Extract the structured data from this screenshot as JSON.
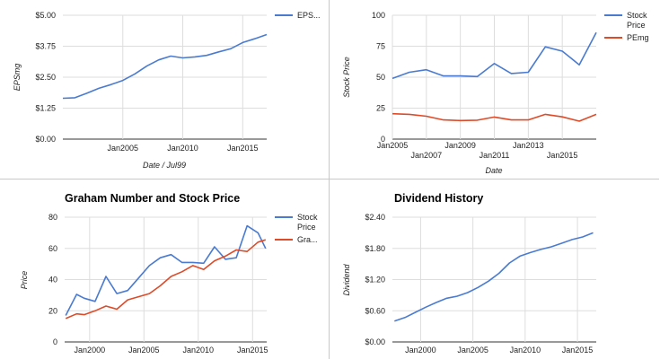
{
  "chart_data": [
    {
      "type": "line",
      "title": "",
      "xlabel": "Date / Jul99",
      "ylabel": "EPSmg",
      "x": [
        2000,
        2001,
        2002,
        2003,
        2004,
        2005,
        2006,
        2007,
        2008,
        2009,
        2010,
        2011,
        2012,
        2013,
        2014,
        2015,
        2016,
        2017
      ],
      "series": [
        {
          "name": "EPS...",
          "color": "#4a7bd0",
          "values": [
            1.65,
            1.67,
            1.85,
            2.05,
            2.2,
            2.37,
            2.63,
            2.95,
            3.2,
            3.35,
            3.28,
            3.32,
            3.38,
            3.52,
            3.65,
            3.9,
            4.05,
            4.22
          ]
        }
      ],
      "xlim": [
        2000,
        2017
      ],
      "ylim": [
        0,
        5
      ],
      "yticks": [
        0,
        1.25,
        2.5,
        3.75,
        5
      ],
      "ytick_labels": [
        "$0.00",
        "$1.25",
        "$2.50",
        "$3.75",
        "$5.00"
      ],
      "xticks": [
        2005,
        2010,
        2015
      ],
      "xtick_labels": [
        "Jan2005",
        "Jan2010",
        "Jan2015"
      ],
      "grid": true,
      "legend": "top-right"
    },
    {
      "type": "line",
      "title": "",
      "xlabel": "Date",
      "ylabel": "Stock Price",
      "x": [
        2005,
        2006,
        2007,
        2008,
        2009,
        2010,
        2011,
        2012,
        2013,
        2014,
        2015,
        2016,
        2017
      ],
      "series": [
        {
          "name": "Stock Price",
          "color": "#4a7bd0",
          "values": [
            49,
            54,
            56,
            51,
            51,
            50.5,
            61,
            53,
            54,
            74.5,
            71,
            60,
            86
          ]
        },
        {
          "name": "PEmg",
          "color": "#dd4b29",
          "values": [
            20.5,
            20,
            18.5,
            15.5,
            15,
            15.3,
            17.8,
            15.5,
            15.5,
            20,
            18,
            14.5,
            20
          ]
        }
      ],
      "xlim": [
        2005,
        2017
      ],
      "ylim": [
        0,
        100
      ],
      "yticks": [
        0,
        25,
        50,
        75,
        100
      ],
      "ytick_labels": [
        "0",
        "25",
        "50",
        "75",
        "100"
      ],
      "xticks": [
        2005,
        2007,
        2009,
        2011,
        2013,
        2015
      ],
      "xtick_labels": [
        "Jan2005",
        "Jan2007",
        "Jan2009",
        "Jan2011",
        "Jan2013",
        "Jan2015"
      ],
      "grid": true,
      "legend": "top-right"
    },
    {
      "type": "line",
      "title": "Graham Number and Stock Price",
      "xlabel": "",
      "ylabel": "Price",
      "x": [
        1998,
        1999,
        2000,
        2001,
        2002,
        2003,
        2004,
        2005,
        2006,
        2007,
        2008,
        2009,
        2010,
        2011,
        2012,
        2013,
        2014,
        2015,
        2016
      ],
      "series": [
        {
          "name": "Stock Price",
          "color": "#4a7bd0",
          "values": [
            17,
            30.5,
            28,
            26,
            42,
            31,
            33,
            41,
            49,
            54,
            56,
            51,
            51,
            50.5,
            61,
            53,
            54,
            74.5,
            70,
            60
          ]
        },
        {
          "name": "Gra...",
          "color": "#dd4b29",
          "values": [
            15,
            18,
            17.5,
            20,
            23,
            21,
            27,
            29,
            31,
            36,
            42,
            45,
            49,
            46.5,
            52,
            55,
            59,
            58,
            64,
            65.5
          ]
        }
      ],
      "x_values": [
        1997.8,
        1998.8,
        1999.5,
        2000.5,
        2001.5,
        2002.5,
        2003.5,
        2004.5,
        2005.5,
        2006.5,
        2007.5,
        2008.5,
        2009.5,
        2010.5,
        2011.5,
        2012.5,
        2013.5,
        2014.5,
        2015.5,
        2016.2
      ],
      "xlim": [
        1997.7,
        2016.3
      ],
      "ylim": [
        0,
        80
      ],
      "yticks": [
        0,
        20,
        40,
        60,
        80
      ],
      "ytick_labels": [
        "0",
        "20",
        "40",
        "60",
        "80"
      ],
      "xticks": [
        2000,
        2005,
        2010,
        2015
      ],
      "xtick_labels": [
        "Jan2000",
        "Jan2005",
        "Jan2010",
        "Jan2015"
      ],
      "grid": true,
      "legend": "top-right"
    },
    {
      "type": "line",
      "title": "Dividend History",
      "xlabel": "",
      "ylabel": "Dividend",
      "x": [
        1997.5,
        1998.5,
        1999.5,
        2000.5,
        2001.5,
        2002.5,
        2003.5,
        2004.5,
        2005.5,
        2006.5,
        2007.5,
        2008.5,
        2009.5,
        2010.5,
        2011.5,
        2012.5,
        2013.5,
        2014.5,
        2015.5,
        2016.5
      ],
      "series": [
        {
          "name": "Dividend",
          "color": "#4a7bd0",
          "values": [
            0.4,
            0.47,
            0.57,
            0.67,
            0.76,
            0.84,
            0.88,
            0.95,
            1.05,
            1.17,
            1.32,
            1.52,
            1.65,
            1.72,
            1.78,
            1.83,
            1.9,
            1.97,
            2.02,
            2.1
          ]
        }
      ],
      "xlim": [
        1997.3,
        2016.8
      ],
      "ylim": [
        0,
        2.4
      ],
      "yticks": [
        0,
        0.6,
        1.2,
        1.8,
        2.4
      ],
      "ytick_labels": [
        "$0.00",
        "$0.60",
        "$1.20",
        "$1.80",
        "$2.40"
      ],
      "xticks": [
        2000,
        2005,
        2010,
        2015
      ],
      "xtick_labels": [
        "Jan2000",
        "Jan2005",
        "Jan2010",
        "Jan2015"
      ],
      "grid": true,
      "legend": "none"
    }
  ]
}
